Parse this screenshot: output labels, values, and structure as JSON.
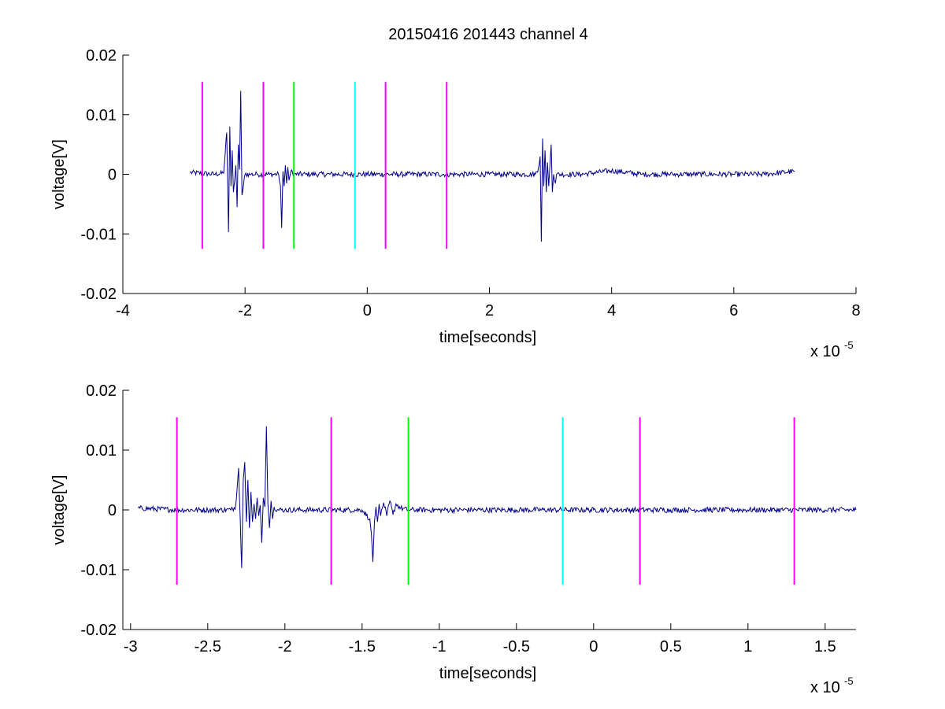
{
  "figure": {
    "title": "20150416 201443 channel 4",
    "background": "#ffffff"
  },
  "colors": {
    "signal": "#00008b",
    "magenta": "#ff00ff",
    "green": "#00ff00",
    "cyan": "#00ffff",
    "axis": "#000000"
  },
  "chart_data": [
    {
      "type": "line",
      "xlabel": "time[seconds]",
      "ylabel": "voltage[V]",
      "x_exponent_label": "x 10",
      "x_exponent_power": "-5",
      "x_scale": 1e-05,
      "xlim": [
        -4,
        8
      ],
      "ylim": [
        -0.02,
        0.02
      ],
      "x_ticks": [
        -4,
        -2,
        0,
        2,
        4,
        6,
        8
      ],
      "x_tick_labels": [
        "-4",
        "-2",
        "0",
        "2",
        "4",
        "6",
        "8"
      ],
      "y_ticks": [
        -0.02,
        -0.01,
        0,
        0.01,
        0.02
      ],
      "y_tick_labels": [
        "-0.02",
        "-0.01",
        "0",
        "0.01",
        "0.02"
      ],
      "grid": false,
      "series": [
        {
          "color": "#00008b",
          "signal_range": [
            -2.95,
            7.0
          ],
          "x": [
            -2.9,
            -2.5,
            -2.35,
            -2.3,
            -2.27,
            -2.25,
            -2.23,
            -2.21,
            -2.19,
            -2.17,
            -2.15,
            -2.13,
            -2.11,
            -2.09,
            -2.07,
            -2.05,
            -2.0,
            -1.9,
            -1.8,
            -1.6,
            -1.45,
            -1.42,
            -1.4,
            -1.38,
            -1.36,
            -1.34,
            -1.32,
            -1.3,
            -1.28,
            -1.25,
            -1.2,
            -1.0,
            -0.5,
            0.0,
            0.5,
            1.0,
            1.5,
            2.0,
            2.5,
            2.75,
            2.8,
            2.83,
            2.85,
            2.87,
            2.89,
            2.91,
            2.93,
            2.95,
            2.97,
            2.99,
            3.01,
            3.03,
            3.05,
            3.08,
            3.1,
            3.2,
            3.5,
            4.0,
            4.5,
            5.0,
            5.5,
            6.0,
            6.5,
            7.0
          ],
          "y": [
            0.0003,
            0.0,
            0.0002,
            0.007,
            -0.0097,
            0.008,
            -0.002,
            0.004,
            -0.003,
            -0.001,
            0.0015,
            -0.0055,
            0.005,
            0.0008,
            0.014,
            -0.0035,
            0.0,
            0.0,
            0.0,
            0.0,
            0.0,
            -0.002,
            -0.009,
            0.0005,
            -0.002,
            0.0015,
            -0.0015,
            0.0012,
            -0.001,
            0.0005,
            0.0,
            0.0,
            0.0,
            0.0,
            0.0,
            0.0,
            0.0,
            0.0,
            0.0,
            0.0,
            0.001,
            0.003,
            -0.0113,
            0.006,
            -0.002,
            0.004,
            -0.003,
            0.002,
            -0.002,
            0.0015,
            0.005,
            -0.003,
            0.0,
            -0.0015,
            0.0,
            0.0,
            0.0,
            0.0006,
            0.0,
            0.0,
            0.0,
            0.0,
            0.0,
            0.0005
          ]
        }
      ],
      "markers": [
        {
          "x": -2.7,
          "color": "#ff00ff",
          "y_range": [
            -0.0125,
            0.0155
          ]
        },
        {
          "x": -1.7,
          "color": "#ff00ff",
          "y_range": [
            -0.0125,
            0.0155
          ]
        },
        {
          "x": -1.2,
          "color": "#00ff00",
          "y_range": [
            -0.0125,
            0.0155
          ]
        },
        {
          "x": -0.2,
          "color": "#00ffff",
          "y_range": [
            -0.0125,
            0.0155
          ]
        },
        {
          "x": 0.3,
          "color": "#ff00ff",
          "y_range": [
            -0.0125,
            0.0155
          ]
        },
        {
          "x": 1.3,
          "color": "#ff00ff",
          "y_range": [
            -0.0125,
            0.0155
          ]
        }
      ]
    },
    {
      "type": "line",
      "xlabel": "time[seconds]",
      "ylabel": "voltage[V]",
      "x_exponent_label": "x 10",
      "x_exponent_power": "-5",
      "x_scale": 1e-05,
      "xlim": [
        -3.05,
        1.7
      ],
      "ylim": [
        -0.02,
        0.02
      ],
      "x_ticks": [
        -3,
        -2.5,
        -2,
        -1.5,
        -1,
        -0.5,
        0,
        0.5,
        1,
        1.5
      ],
      "x_tick_labels": [
        "-3",
        "-2.5",
        "-2",
        "-1.5",
        "-1",
        "-0.5",
        "0",
        "0.5",
        "1",
        "1.5"
      ],
      "y_ticks": [
        -0.02,
        -0.01,
        0,
        0.01,
        0.02
      ],
      "y_tick_labels": [
        "-0.02",
        "-0.01",
        "0",
        "0.01",
        "0.02"
      ],
      "grid": false,
      "series": [
        {
          "color": "#00008b",
          "signal_range": [
            -2.95,
            1.7
          ],
          "x": [
            -2.95,
            -2.7,
            -2.5,
            -2.35,
            -2.32,
            -2.3,
            -2.28,
            -2.27,
            -2.26,
            -2.25,
            -2.24,
            -2.23,
            -2.22,
            -2.21,
            -2.2,
            -2.19,
            -2.18,
            -2.17,
            -2.16,
            -2.15,
            -2.14,
            -2.13,
            -2.12,
            -2.11,
            -2.1,
            -2.09,
            -2.08,
            -2.07,
            -2.05,
            -2.0,
            -1.9,
            -1.8,
            -1.6,
            -1.5,
            -1.45,
            -1.44,
            -1.43,
            -1.42,
            -1.41,
            -1.4,
            -1.39,
            -1.38,
            -1.36,
            -1.34,
            -1.32,
            -1.3,
            -1.28,
            -1.25,
            -1.2,
            -1.0,
            -0.5,
            0.0,
            0.5,
            1.0,
            1.5,
            1.7
          ],
          "y": [
            0.0003,
            0.0,
            0.0,
            0.0,
            0.0005,
            0.007,
            -0.0097,
            0.005,
            0.008,
            -0.002,
            0.005,
            -0.003,
            0.003,
            -0.002,
            0.001,
            -0.0015,
            0.002,
            -0.001,
            0.0008,
            -0.0055,
            0.002,
            0.0005,
            0.014,
            0.001,
            -0.003,
            0.0015,
            -0.0015,
            0.0005,
            0.0,
            0.0,
            0.0,
            0.0,
            0.0,
            0.0,
            -0.0015,
            -0.004,
            -0.0087,
            -0.002,
            0.0005,
            -0.002,
            0.001,
            -0.001,
            0.0012,
            -0.001,
            0.0015,
            -0.0008,
            0.001,
            0.0003,
            0.0,
            0.0,
            0.0,
            0.0,
            0.0,
            0.0,
            0.0,
            0.0
          ]
        }
      ],
      "markers": [
        {
          "x": -2.7,
          "color": "#ff00ff",
          "y_range": [
            -0.0125,
            0.0155
          ]
        },
        {
          "x": -1.7,
          "color": "#ff00ff",
          "y_range": [
            -0.0125,
            0.0155
          ]
        },
        {
          "x": -1.2,
          "color": "#00ff00",
          "y_range": [
            -0.0125,
            0.0155
          ]
        },
        {
          "x": -0.2,
          "color": "#00ffff",
          "y_range": [
            -0.0125,
            0.0155
          ]
        },
        {
          "x": 0.3,
          "color": "#ff00ff",
          "y_range": [
            -0.0125,
            0.0155
          ]
        },
        {
          "x": 1.3,
          "color": "#ff00ff",
          "y_range": [
            -0.0125,
            0.0155
          ]
        }
      ]
    }
  ]
}
